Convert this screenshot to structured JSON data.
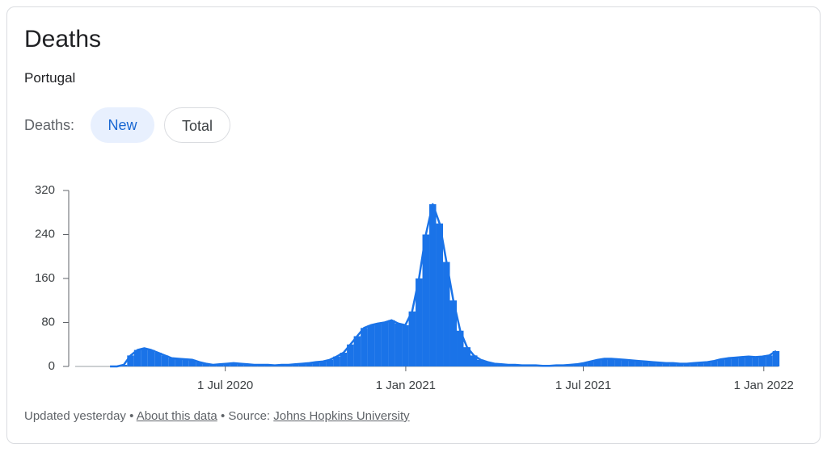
{
  "header": {
    "title": "Deaths",
    "subtitle": "Portugal"
  },
  "toggle": {
    "label": "Deaths:",
    "options": [
      "New",
      "Total"
    ],
    "selected": "New"
  },
  "chart_data": {
    "type": "bar",
    "x": [
      "2020-03-02",
      "2020-03-09",
      "2020-03-16",
      "2020-03-23",
      "2020-03-30",
      "2020-04-06",
      "2020-04-13",
      "2020-04-20",
      "2020-04-27",
      "2020-05-04",
      "2020-05-11",
      "2020-05-18",
      "2020-05-25",
      "2020-06-01",
      "2020-06-08",
      "2020-06-15",
      "2020-06-22",
      "2020-06-29",
      "2020-07-06",
      "2020-07-13",
      "2020-07-20",
      "2020-07-27",
      "2020-08-03",
      "2020-08-10",
      "2020-08-17",
      "2020-08-24",
      "2020-08-31",
      "2020-09-07",
      "2020-09-14",
      "2020-09-21",
      "2020-09-28",
      "2020-10-05",
      "2020-10-12",
      "2020-10-19",
      "2020-10-26",
      "2020-11-02",
      "2020-11-09",
      "2020-11-16",
      "2020-11-23",
      "2020-11-30",
      "2020-12-07",
      "2020-12-14",
      "2020-12-21",
      "2020-12-28",
      "2021-01-04",
      "2021-01-11",
      "2021-01-18",
      "2021-01-25",
      "2021-02-01",
      "2021-02-08",
      "2021-02-15",
      "2021-02-22",
      "2021-03-01",
      "2021-03-08",
      "2021-03-15",
      "2021-03-22",
      "2021-03-29",
      "2021-04-05",
      "2021-04-12",
      "2021-04-19",
      "2021-04-26",
      "2021-05-03",
      "2021-05-10",
      "2021-05-17",
      "2021-05-24",
      "2021-05-31",
      "2021-06-07",
      "2021-06-14",
      "2021-06-21",
      "2021-06-28",
      "2021-07-05",
      "2021-07-12",
      "2021-07-19",
      "2021-07-26",
      "2021-08-02",
      "2021-08-09",
      "2021-08-16",
      "2021-08-23",
      "2021-08-30",
      "2021-09-06",
      "2021-09-13",
      "2021-09-20",
      "2021-09-27",
      "2021-10-04",
      "2021-10-11",
      "2021-10-18",
      "2021-10-25",
      "2021-11-01",
      "2021-11-08",
      "2021-11-15",
      "2021-11-22",
      "2021-11-29",
      "2021-12-06",
      "2021-12-13",
      "2021-12-20",
      "2021-12-27",
      "2022-01-03",
      "2022-01-10"
    ],
    "series": [
      {
        "name": "New",
        "color": "#1a73e8",
        "values": [
          0,
          0,
          3,
          20,
          30,
          33,
          30,
          25,
          20,
          15,
          14,
          13,
          12,
          8,
          5,
          3,
          4,
          5,
          6,
          5,
          4,
          3,
          3,
          3,
          2,
          3,
          3,
          4,
          5,
          6,
          8,
          9,
          12,
          18,
          25,
          40,
          55,
          70,
          75,
          78,
          80,
          84,
          78,
          75,
          100,
          160,
          240,
          295,
          260,
          190,
          120,
          65,
          35,
          20,
          12,
          8,
          5,
          4,
          3,
          3,
          2,
          2,
          2,
          1,
          1,
          2,
          2,
          3,
          4,
          6,
          9,
          12,
          14,
          14,
          13,
          12,
          11,
          10,
          9,
          8,
          7,
          6,
          6,
          5,
          5,
          6,
          7,
          8,
          10,
          13,
          15,
          16,
          17,
          18,
          17,
          18,
          20,
          28
        ]
      }
    ],
    "xlim": [
      "2020-01-30",
      "2022-01-16"
    ],
    "xticks": [
      {
        "value": "2020-07-01",
        "label": "1 Jul 2020"
      },
      {
        "value": "2021-01-01",
        "label": "1 Jan 2021"
      },
      {
        "value": "2021-07-01",
        "label": "1 Jul 2021"
      },
      {
        "value": "2022-01-01",
        "label": "1 Jan 2022"
      }
    ],
    "ylim": [
      0,
      320
    ],
    "yticks": [
      0,
      80,
      160,
      240,
      320
    ],
    "grid": false
  },
  "footer": {
    "updated": "Updated yesterday",
    "separator": "•",
    "about": "About this data",
    "source_label": "Source:",
    "source": "Johns Hopkins University"
  }
}
